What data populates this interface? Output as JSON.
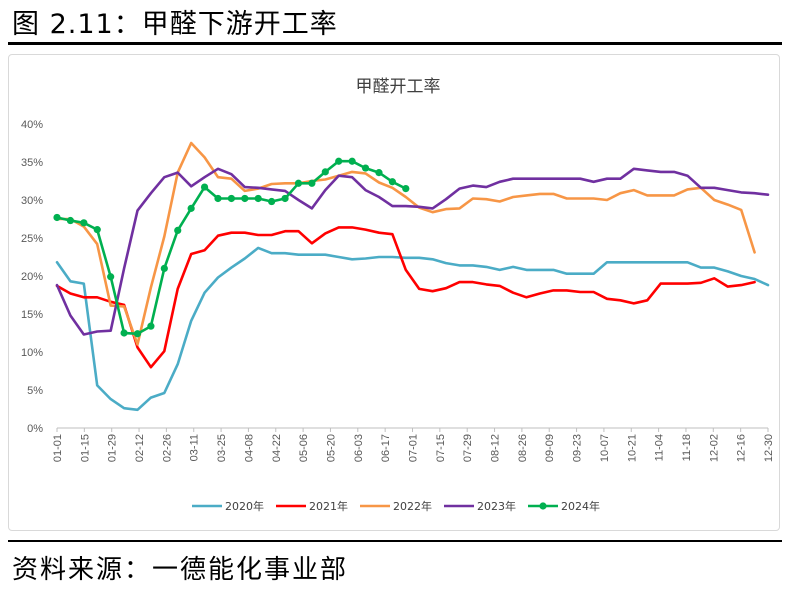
{
  "figure": {
    "title": "图 2.11：甲醛下游开工率",
    "source": "资料来源：一德能化事业部"
  },
  "chart_data": {
    "type": "line",
    "title": "甲醛开工率",
    "xlabel": "",
    "ylabel": "",
    "ylim": [
      0,
      40
    ],
    "yticks": [
      "0%",
      "5%",
      "10%",
      "15%",
      "20%",
      "25%",
      "30%",
      "35%",
      "40%"
    ],
    "x_labels": [
      "01-01",
      "01-15",
      "01-29",
      "02-12",
      "02-26",
      "03-11",
      "03-25",
      "04-08",
      "04-22",
      "05-06",
      "05-20",
      "06-03",
      "06-17",
      "07-01",
      "07-15",
      "07-29",
      "08-12",
      "08-26",
      "09-09",
      "09-23",
      "10-07",
      "10-21",
      "11-04",
      "11-18",
      "12-02",
      "12-16",
      "12-30"
    ],
    "grid": "none",
    "legend_position": "bottom",
    "series": [
      {
        "name": "2020年",
        "color": "#4bacc6",
        "marker": false,
        "values": [
          21.8,
          19.3,
          19.0,
          5.6,
          3.8,
          2.6,
          2.4,
          4.0,
          4.6,
          8.4,
          14.1,
          17.8,
          19.8,
          21.1,
          22.3,
          23.7,
          23.0,
          23.0,
          22.8,
          22.8,
          22.8,
          22.5,
          22.2,
          22.3,
          22.5,
          22.5,
          22.4,
          22.4,
          22.2,
          21.7,
          21.4,
          21.4,
          21.2,
          20.8,
          21.2,
          20.8,
          20.8,
          20.8,
          20.3,
          20.3,
          20.3,
          21.8,
          21.8,
          21.8,
          21.8,
          21.8,
          21.8,
          21.8,
          21.1,
          21.1,
          20.6,
          20.0,
          19.6,
          18.8
        ]
      },
      {
        "name": "2021年",
        "color": "#ff0000",
        "marker": false,
        "values": [
          18.7,
          17.7,
          17.2,
          17.2,
          16.6,
          16.2,
          10.6,
          8.0,
          10.1,
          18.3,
          22.9,
          23.4,
          25.3,
          25.7,
          25.7,
          25.4,
          25.4,
          25.9,
          25.9,
          24.3,
          25.6,
          26.4,
          26.4,
          26.1,
          25.7,
          25.5,
          20.8,
          18.3,
          18.0,
          18.4,
          19.2,
          19.2,
          18.9,
          18.7,
          17.8,
          17.2,
          17.7,
          18.1,
          18.1,
          17.9,
          17.9,
          17.0,
          16.8,
          16.4,
          16.8,
          19.0,
          19.0,
          19.0,
          19.1,
          19.7,
          18.6,
          18.8,
          19.2
        ]
      },
      {
        "name": "2022年",
        "color": "#f79646",
        "marker": false,
        "values": [
          27.5,
          27.5,
          26.5,
          24.2,
          16.1,
          16.0,
          11.0,
          18.5,
          25.2,
          33.6,
          37.5,
          35.6,
          33.0,
          32.8,
          31.2,
          31.5,
          32.1,
          32.2,
          32.2,
          32.5,
          32.7,
          33.2,
          33.7,
          33.5,
          32.3,
          31.6,
          30.4,
          29.0,
          28.4,
          28.8,
          28.9,
          30.2,
          30.1,
          29.8,
          30.4,
          30.6,
          30.8,
          30.8,
          30.2,
          30.2,
          30.2,
          30.0,
          30.9,
          31.3,
          30.6,
          30.6,
          30.6,
          31.4,
          31.6,
          30.0,
          29.4,
          28.7,
          23.1
        ]
      },
      {
        "name": "2023年",
        "color": "#7030a0",
        "marker": false,
        "values": [
          18.8,
          14.8,
          12.3,
          12.7,
          12.8,
          21.0,
          28.6,
          30.9,
          33.0,
          33.6,
          31.8,
          33.0,
          34.1,
          33.4,
          31.7,
          31.6,
          31.4,
          31.2,
          30.0,
          28.9,
          31.3,
          33.2,
          33.0,
          31.3,
          30.4,
          29.2,
          29.2,
          29.1,
          28.9,
          30.1,
          31.5,
          31.9,
          31.7,
          32.4,
          32.8,
          32.8,
          32.8,
          32.8,
          32.8,
          32.8,
          32.4,
          32.8,
          32.8,
          34.1,
          33.9,
          33.7,
          33.7,
          33.2,
          31.6,
          31.6,
          31.3,
          31.0,
          30.9,
          30.7
        ]
      },
      {
        "name": "2024年",
        "color": "#00b050",
        "marker": true,
        "values": [
          27.7,
          27.3,
          27.0,
          26.1,
          19.9,
          12.5,
          12.4,
          13.4,
          21.0,
          26.0,
          28.9,
          31.7,
          30.2,
          30.2,
          30.2,
          30.2,
          29.8,
          30.2,
          32.2,
          32.2,
          33.7,
          35.1,
          35.1,
          34.2,
          33.6,
          32.4,
          31.5
        ]
      }
    ]
  }
}
